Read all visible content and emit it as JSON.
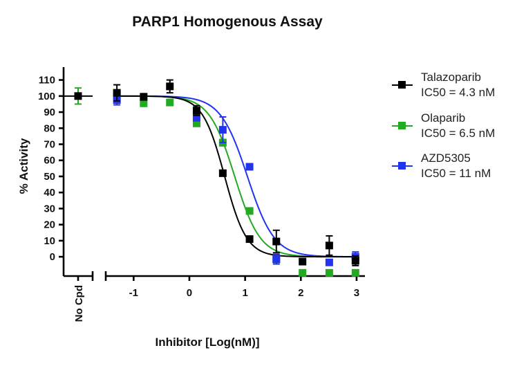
{
  "chart_data": {
    "type": "scatter",
    "title": "PARP1  Homogenous Assay",
    "xlabel": "Inhibitor [Log(nM)]",
    "ylabel": "% Activity",
    "xlim": [
      -1.5,
      3.15
    ],
    "ylim": [
      -12,
      118
    ],
    "x_ticks": [
      -1,
      0,
      1,
      2,
      3
    ],
    "x_tick_labels": [
      "-1",
      "0",
      "1",
      "2",
      "3"
    ],
    "y_ticks": [
      0,
      10,
      20,
      30,
      40,
      50,
      60,
      70,
      80,
      90,
      100,
      110
    ],
    "y_tick_labels": [
      "0",
      "10",
      "20",
      "30",
      "40",
      "50",
      "60",
      "70",
      "80",
      "90",
      "100",
      "110"
    ],
    "no_cpd_label": "No Cpd",
    "no_cpd_value": 100,
    "legend_position": "right",
    "series": [
      {
        "name": "Talazoparib",
        "ic50_label": "IC50 = 4.3 nM",
        "color": "#000000",
        "x": [
          -1.3,
          -0.82,
          -0.35,
          0.13,
          0.6,
          1.08,
          1.56,
          2.03,
          2.51,
          2.98
        ],
        "y": [
          102,
          99.5,
          106,
          91,
          52,
          11,
          9.5,
          -3,
          7,
          -2.5
        ],
        "err": [
          5,
          2,
          4,
          3,
          0,
          0,
          7,
          1.5,
          6,
          3
        ],
        "fit": {
          "bottom": 0,
          "top": 100,
          "logIC50": 0.633,
          "hill": -2.2
        }
      },
      {
        "name": "Olaparib",
        "ic50_label": "IC50 = 6.5 nM",
        "color": "#22aa22",
        "x": [
          -1.3,
          -0.82,
          -0.35,
          0.13,
          0.6,
          1.08,
          1.56,
          2.03,
          2.51,
          2.98
        ],
        "y": [
          100,
          95.5,
          96,
          83,
          71,
          28.5,
          -1.5,
          -10,
          -10,
          -10
        ],
        "err": [
          3,
          1,
          1.5,
          1,
          2,
          1,
          2,
          0,
          0,
          0
        ],
        "fit": {
          "bottom": 0,
          "top": 100,
          "logIC50": 0.813,
          "hill": -1.9
        }
      },
      {
        "name": "AZD5305",
        "ic50_label": "IC50 = 11 nM",
        "color": "#2233ee",
        "x": [
          -1.3,
          0.13,
          0.6,
          1.08,
          1.56,
          2.51,
          2.98
        ],
        "y": [
          97.5,
          86.5,
          79,
          56,
          -1.5,
          -3.5,
          0
        ],
        "err": [
          3,
          1,
          8,
          1,
          3,
          0,
          3
        ],
        "fit": {
          "bottom": 0,
          "top": 100,
          "logIC50": 1.041,
          "hill": -1.8
        }
      }
    ]
  }
}
